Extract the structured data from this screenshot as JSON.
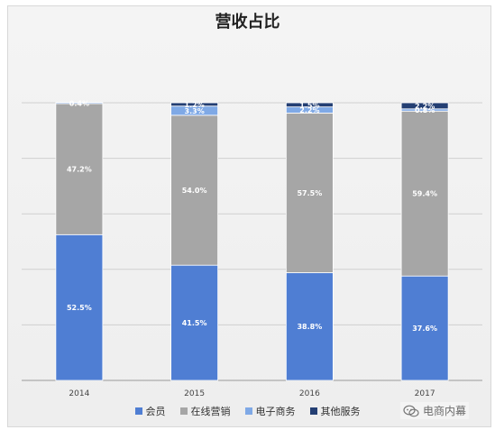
{
  "chart_data": {
    "type": "bar",
    "stacked": true,
    "title": "营收占比",
    "categories": [
      "2014",
      "2015",
      "2016",
      "2017"
    ],
    "series": [
      {
        "name": "会员",
        "values": [
          52.5,
          41.5,
          38.8,
          37.6
        ],
        "labels": [
          "52.5%",
          "41.5%",
          "38.8%",
          "37.6%"
        ],
        "color": "#4f7ed3"
      },
      {
        "name": "在线营销",
        "values": [
          47.2,
          54.0,
          57.5,
          59.4
        ],
        "labels": [
          "47.2%",
          "54.0%",
          "57.5%",
          "59.4%"
        ],
        "color": "#a6a6a6"
      },
      {
        "name": "电子商务",
        "values": [
          0.4,
          3.3,
          2.2,
          0.8
        ],
        "labels": [
          "0.4%",
          "3.3%",
          "2.2%",
          "0.8%"
        ],
        "color": "#7fa9e6"
      },
      {
        "name": "其他服务",
        "values": [
          0,
          1.2,
          1.5,
          2.2
        ],
        "labels": [
          "",
          "1.2%",
          "1.5%",
          "2.2%"
        ],
        "color": "#243f73"
      }
    ],
    "ylim": [
      0,
      100
    ],
    "grid": true,
    "legend_position": "bottom"
  },
  "watermark": {
    "text": "电商内幕",
    "icon": "wechat-icon"
  }
}
